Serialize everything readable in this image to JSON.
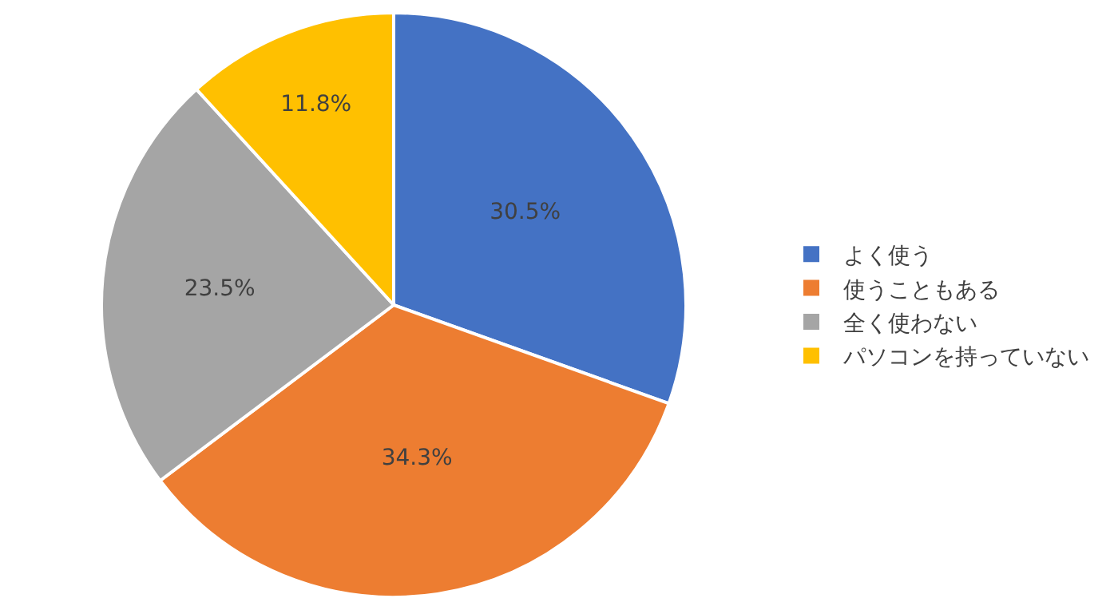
{
  "chart_data": {
    "type": "pie",
    "categories": [
      "よく使う",
      "使うこともある",
      "全く使わない",
      "パソコンを持っていない"
    ],
    "values": [
      30.5,
      34.3,
      23.5,
      11.8
    ],
    "colors": [
      "#4472c4",
      "#ed7d31",
      "#a5a5a5",
      "#ffc000"
    ],
    "value_labels": [
      "30.5%",
      "34.3%",
      "23.5%",
      "11.8%"
    ],
    "legend": "right"
  }
}
